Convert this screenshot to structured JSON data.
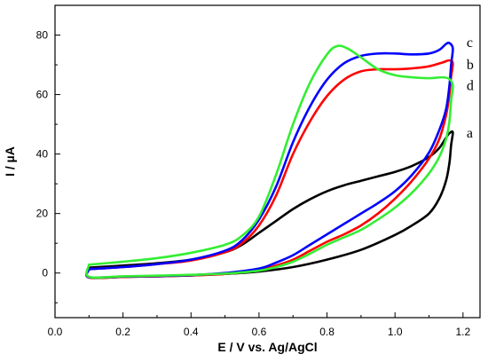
{
  "chart_data": {
    "type": "line",
    "xlabel": "E / V vs. Ag/AgCl",
    "ylabel": "I / µA",
    "xlim": [
      0.0,
      1.25
    ],
    "ylim": [
      -15,
      90
    ],
    "xticks": [
      0.0,
      0.2,
      0.4,
      0.6,
      0.8,
      1.0,
      1.2
    ],
    "xtick_labels": [
      "0.0",
      "0.2",
      "0.4",
      "0.6",
      "0.8",
      "1.0",
      "1.2"
    ],
    "yticks": [
      0,
      20,
      40,
      60,
      80
    ],
    "ytick_labels": [
      "0",
      "20",
      "40",
      "60",
      "80"
    ],
    "grid": false,
    "series": [
      {
        "name": "a",
        "color": "#000000",
        "label_at": [
          1.2,
          47
        ],
        "forward": [
          [
            0.1,
            1.8
          ],
          [
            0.2,
            2.5
          ],
          [
            0.3,
            3.3
          ],
          [
            0.4,
            4.5
          ],
          [
            0.5,
            7.0
          ],
          [
            0.55,
            9.5
          ],
          [
            0.6,
            13.5
          ],
          [
            0.65,
            17.5
          ],
          [
            0.7,
            21.5
          ],
          [
            0.75,
            24.8
          ],
          [
            0.8,
            27.5
          ],
          [
            0.85,
            29.5
          ],
          [
            0.9,
            31.0
          ],
          [
            0.95,
            32.5
          ],
          [
            1.0,
            34.0
          ],
          [
            1.05,
            36.0
          ],
          [
            1.1,
            39.0
          ],
          [
            1.13,
            42.0
          ],
          [
            1.15,
            45.5
          ],
          [
            1.16,
            47.0
          ],
          [
            1.17,
            47.3
          ]
        ],
        "reverse": [
          [
            1.17,
            47.3
          ],
          [
            1.165,
            43.0
          ],
          [
            1.16,
            37.0
          ],
          [
            1.15,
            31.0
          ],
          [
            1.13,
            25.0
          ],
          [
            1.1,
            20.0
          ],
          [
            1.05,
            16.0
          ],
          [
            1.0,
            12.8
          ],
          [
            0.9,
            7.8
          ],
          [
            0.8,
            4.5
          ],
          [
            0.7,
            2.0
          ],
          [
            0.6,
            0.5
          ],
          [
            0.5,
            -0.3
          ],
          [
            0.4,
            -0.8
          ],
          [
            0.3,
            -1.1
          ],
          [
            0.2,
            -1.3
          ],
          [
            0.1,
            -1.5
          ]
        ]
      },
      {
        "name": "b",
        "color": "#ff0000",
        "label_at": [
          1.2,
          70
        ],
        "forward": [
          [
            0.1,
            1.3
          ],
          [
            0.2,
            2.0
          ],
          [
            0.3,
            3.0
          ],
          [
            0.4,
            4.2
          ],
          [
            0.5,
            7.0
          ],
          [
            0.55,
            10.0
          ],
          [
            0.6,
            16.0
          ],
          [
            0.65,
            26.0
          ],
          [
            0.7,
            40.0
          ],
          [
            0.75,
            51.0
          ],
          [
            0.8,
            59.5
          ],
          [
            0.85,
            65.0
          ],
          [
            0.9,
            67.8
          ],
          [
            0.95,
            68.5
          ],
          [
            1.0,
            68.5
          ],
          [
            1.05,
            68.8
          ],
          [
            1.1,
            69.5
          ],
          [
            1.14,
            70.8
          ],
          [
            1.16,
            71.5
          ],
          [
            1.17,
            70.5
          ]
        ],
        "reverse": [
          [
            1.17,
            70.5
          ],
          [
            1.165,
            66.0
          ],
          [
            1.16,
            60.0
          ],
          [
            1.15,
            53.0
          ],
          [
            1.13,
            45.0
          ],
          [
            1.1,
            38.5
          ],
          [
            1.05,
            31.0
          ],
          [
            1.0,
            25.0
          ],
          [
            0.95,
            20.0
          ],
          [
            0.9,
            16.0
          ],
          [
            0.85,
            13.0
          ],
          [
            0.8,
            10.5
          ],
          [
            0.75,
            7.5
          ],
          [
            0.7,
            4.5
          ],
          [
            0.65,
            2.5
          ],
          [
            0.6,
            1.0
          ],
          [
            0.5,
            -0.3
          ],
          [
            0.4,
            -0.8
          ],
          [
            0.3,
            -1.1
          ],
          [
            0.2,
            -1.3
          ],
          [
            0.1,
            -1.5
          ]
        ]
      },
      {
        "name": "c",
        "color": "#0000ff",
        "label_at": [
          1.2,
          77.5
        ],
        "forward": [
          [
            0.1,
            1.3
          ],
          [
            0.2,
            2.0
          ],
          [
            0.3,
            3.0
          ],
          [
            0.4,
            4.5
          ],
          [
            0.5,
            7.5
          ],
          [
            0.55,
            11.0
          ],
          [
            0.6,
            18.0
          ],
          [
            0.65,
            29.0
          ],
          [
            0.7,
            44.0
          ],
          [
            0.75,
            56.0
          ],
          [
            0.8,
            65.0
          ],
          [
            0.85,
            70.5
          ],
          [
            0.9,
            73.0
          ],
          [
            0.95,
            73.8
          ],
          [
            1.0,
            73.8
          ],
          [
            1.05,
            73.5
          ],
          [
            1.1,
            73.8
          ],
          [
            1.13,
            75.0
          ],
          [
            1.15,
            77.0
          ],
          [
            1.16,
            77.3
          ],
          [
            1.17,
            75.5
          ]
        ],
        "reverse": [
          [
            1.17,
            75.5
          ],
          [
            1.165,
            70.0
          ],
          [
            1.16,
            63.0
          ],
          [
            1.15,
            55.0
          ],
          [
            1.13,
            48.0
          ],
          [
            1.1,
            40.5
          ],
          [
            1.05,
            33.0
          ],
          [
            1.0,
            27.5
          ],
          [
            0.95,
            23.5
          ],
          [
            0.9,
            20.0
          ],
          [
            0.85,
            16.5
          ],
          [
            0.8,
            13.0
          ],
          [
            0.75,
            9.5
          ],
          [
            0.7,
            6.0
          ],
          [
            0.65,
            3.5
          ],
          [
            0.6,
            1.5
          ],
          [
            0.5,
            0.0
          ],
          [
            0.4,
            -0.7
          ],
          [
            0.3,
            -1.0
          ],
          [
            0.2,
            -1.2
          ],
          [
            0.1,
            -1.4
          ]
        ]
      },
      {
        "name": "d",
        "color": "#33ee33",
        "label_at": [
          1.2,
          63
        ],
        "forward": [
          [
            0.1,
            2.8
          ],
          [
            0.2,
            3.8
          ],
          [
            0.3,
            5.0
          ],
          [
            0.4,
            6.8
          ],
          [
            0.5,
            9.5
          ],
          [
            0.55,
            12.5
          ],
          [
            0.6,
            19.0
          ],
          [
            0.65,
            33.0
          ],
          [
            0.7,
            50.0
          ],
          [
            0.75,
            64.0
          ],
          [
            0.8,
            73.5
          ],
          [
            0.83,
            76.3
          ],
          [
            0.86,
            75.5
          ],
          [
            0.9,
            72.5
          ],
          [
            0.95,
            68.5
          ],
          [
            1.0,
            66.5
          ],
          [
            1.05,
            65.8
          ],
          [
            1.1,
            65.5
          ],
          [
            1.14,
            65.8
          ],
          [
            1.16,
            65.2
          ],
          [
            1.17,
            63.0
          ]
        ],
        "reverse": [
          [
            1.17,
            63.0
          ],
          [
            1.165,
            58.0
          ],
          [
            1.16,
            51.0
          ],
          [
            1.15,
            45.0
          ],
          [
            1.13,
            39.0
          ],
          [
            1.1,
            33.5
          ],
          [
            1.05,
            27.0
          ],
          [
            1.0,
            22.0
          ],
          [
            0.95,
            18.0
          ],
          [
            0.9,
            14.5
          ],
          [
            0.85,
            12.0
          ],
          [
            0.8,
            9.5
          ],
          [
            0.75,
            6.5
          ],
          [
            0.7,
            3.8
          ],
          [
            0.65,
            2.0
          ],
          [
            0.6,
            0.8
          ],
          [
            0.5,
            -0.2
          ],
          [
            0.4,
            -0.6
          ],
          [
            0.3,
            -0.9
          ],
          [
            0.2,
            -1.1
          ],
          [
            0.1,
            -1.3
          ]
        ]
      }
    ]
  }
}
